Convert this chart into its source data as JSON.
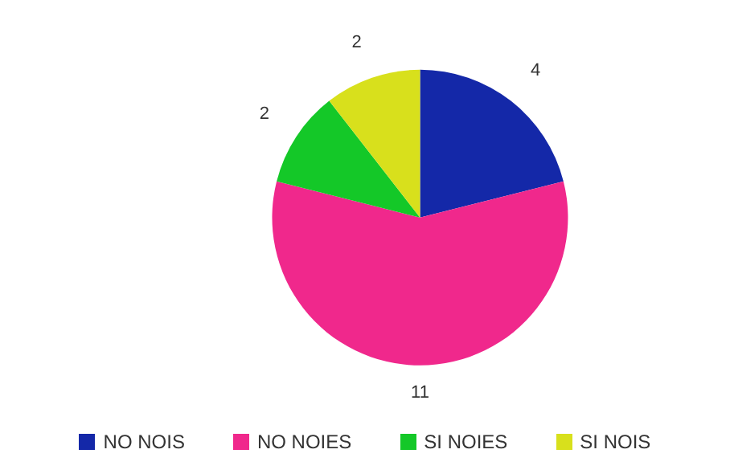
{
  "chart_data": {
    "type": "pie",
    "categories": [
      "NO NOIS",
      "NO NOIES",
      "SI NOIES",
      "SI NOIS"
    ],
    "values": [
      4,
      11,
      2,
      2
    ],
    "colors": [
      "#1428a8",
      "#f0288c",
      "#14c828",
      "#d8e01c"
    ],
    "data_labels": true,
    "legend": "bottom"
  }
}
